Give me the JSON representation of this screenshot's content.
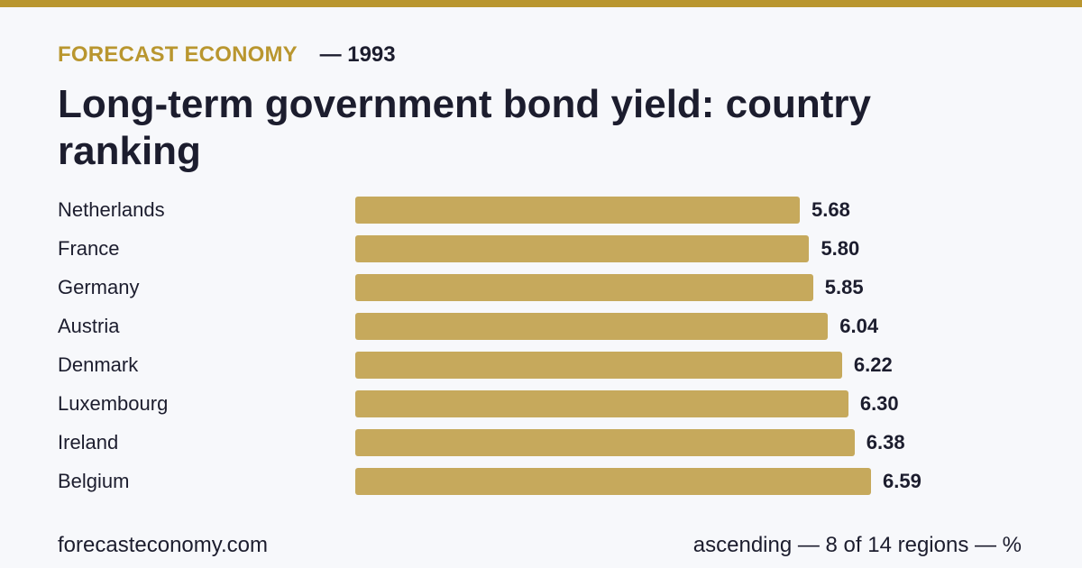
{
  "header": {
    "brand": "FORECAST ECONOMY",
    "year_label": "— 1993"
  },
  "chart_data": {
    "type": "bar",
    "orientation": "horizontal",
    "title": "Long-term government bond yield: country ranking",
    "categories": [
      "Netherlands",
      "France",
      "Germany",
      "Austria",
      "Denmark",
      "Luxembourg",
      "Ireland",
      "Belgium"
    ],
    "values": [
      5.68,
      5.8,
      5.85,
      6.04,
      6.22,
      6.3,
      6.38,
      6.59
    ],
    "value_labels": [
      "5.68",
      "5.80",
      "5.85",
      "6.04",
      "6.22",
      "6.30",
      "6.38",
      "6.59"
    ],
    "xlim": [
      0,
      7.6
    ],
    "grid": false,
    "bar_color": "#c6a95c"
  },
  "footer": {
    "source": "forecasteconomy.com",
    "note": "ascending — 8 of 14 regions — %"
  },
  "colors": {
    "accent": "#b9962f",
    "bar": "#c6a95c",
    "text": "#1c1d2e",
    "background": "#f7f8fb"
  }
}
